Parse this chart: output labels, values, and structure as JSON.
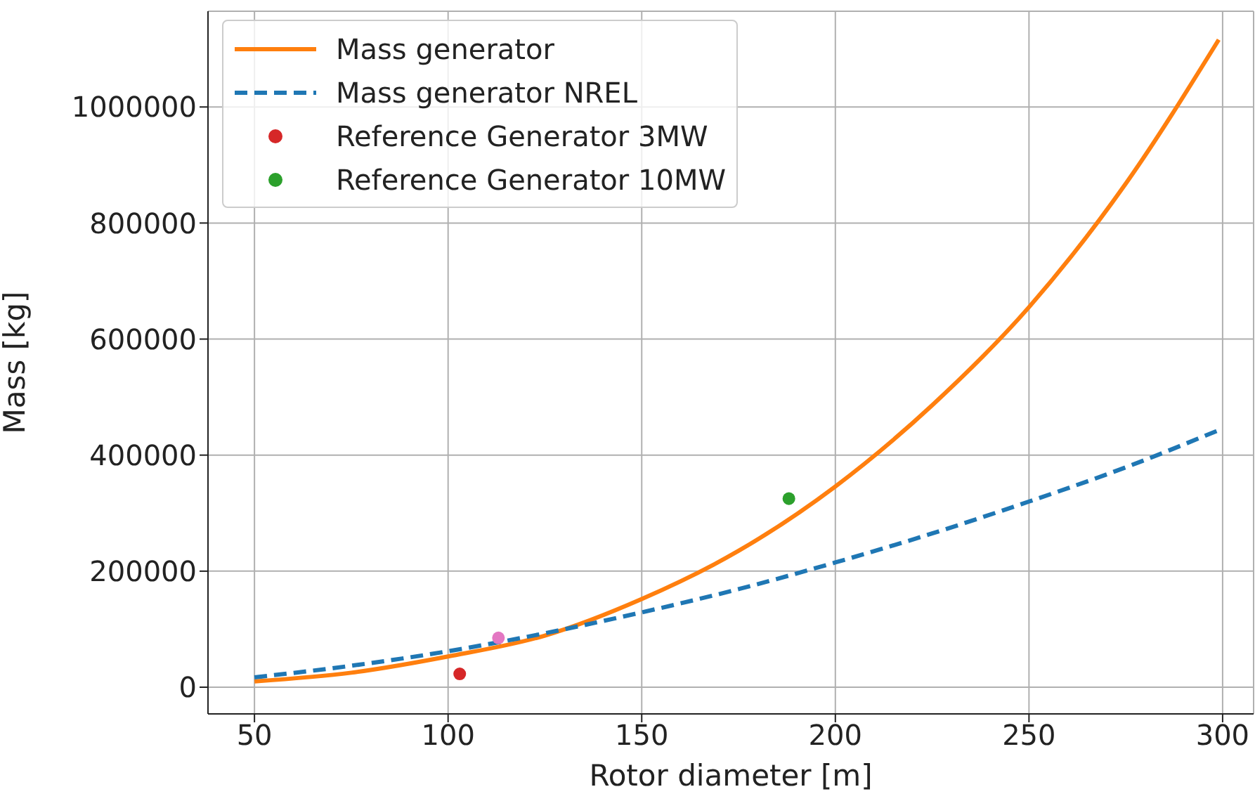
{
  "chart_data": {
    "type": "line",
    "xlabel": "Rotor diameter [m]",
    "ylabel": "Mass [kg]",
    "xlim": [
      38,
      308
    ],
    "xticks": [
      50,
      100,
      150,
      200,
      250,
      300
    ],
    "ylim": [
      -46000,
      1165000
    ],
    "yticks": [
      0,
      200000,
      400000,
      600000,
      800000,
      1000000
    ],
    "grid": true,
    "legend": "top left",
    "series": [
      {
        "name": "Mass generator",
        "type": "line",
        "line_style": "solid",
        "marker": "none",
        "color": "#ff7f0e",
        "x": [
          50,
          75,
          100,
          125,
          150,
          175,
          200,
          225,
          250,
          275,
          299
        ],
        "values": [
          10000,
          25000,
          53000,
          89000,
          152000,
          235000,
          346000,
          486000,
          655000,
          868000,
          1116000
        ]
      },
      {
        "name": "Mass generator NREL",
        "type": "line",
        "line_style": "dashed",
        "marker": "none",
        "color": "#1f77b4",
        "x": [
          50,
          75,
          100,
          125,
          150,
          175,
          200,
          225,
          250,
          275,
          299
        ],
        "values": [
          17000,
          37000,
          62000,
          93000,
          129000,
          169000,
          215000,
          265000,
          320000,
          379000,
          443000
        ]
      },
      {
        "type": "scatter",
        "marker": "circle",
        "color": "#e377c2",
        "x": [
          113
        ],
        "values": [
          85000
        ]
      },
      {
        "name": "Reference Generator 3MW",
        "type": "scatter",
        "marker": "circle",
        "color": "#d62728",
        "x": [
          103
        ],
        "values": [
          23000
        ]
      },
      {
        "name": "Reference Generator 10MW",
        "type": "scatter",
        "marker": "circle",
        "color": "#2ca02c",
        "x": [
          188
        ],
        "values": [
          325000
        ]
      }
    ]
  }
}
